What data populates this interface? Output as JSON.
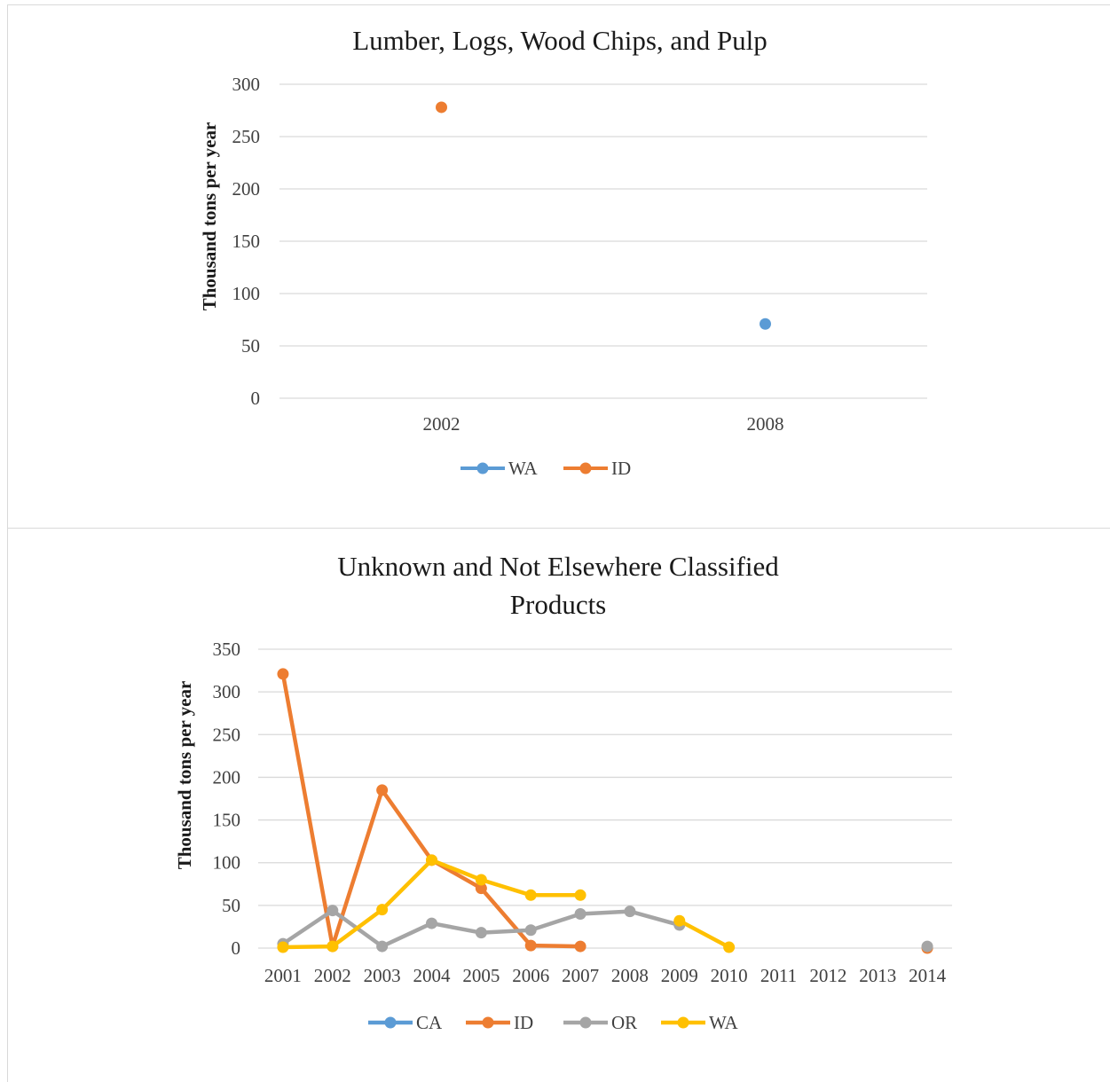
{
  "chart_data": [
    {
      "type": "line",
      "title": "Lumber, Logs, Wood Chips, and Pulp",
      "subtitle": "",
      "xlabel": "",
      "ylabel": "Thousand tons per year",
      "categories": [
        "2002",
        "2008"
      ],
      "ylim": [
        0,
        300
      ],
      "yticks": [
        "0",
        "50",
        "100",
        "150",
        "200",
        "250",
        "300"
      ],
      "grid": true,
      "legend": "bottom",
      "series": [
        {
          "name": "WA",
          "color": "#5b9bd5",
          "values": [
            null,
            71
          ]
        },
        {
          "name": "ID",
          "color": "#ed7d31",
          "values": [
            278,
            null
          ]
        }
      ]
    },
    {
      "type": "line",
      "title": "Unknown and Not Elsewhere Classified Products",
      "title_lines": [
        "Unknown and Not Elsewhere Classified",
        "Products"
      ],
      "subtitle": "",
      "xlabel": "",
      "ylabel": "Thousand tons per year",
      "categories": [
        "2001",
        "2002",
        "2003",
        "2004",
        "2005",
        "2006",
        "2007",
        "2008",
        "2009",
        "2010",
        "2011",
        "2012",
        "2013",
        "2014"
      ],
      "ylim": [
        0,
        350
      ],
      "yticks": [
        "0",
        "50",
        "100",
        "150",
        "200",
        "250",
        "300",
        "350"
      ],
      "grid": true,
      "legend": "bottom",
      "series": [
        {
          "name": "CA",
          "color": "#5b9bd5",
          "values": [
            null,
            null,
            null,
            null,
            null,
            null,
            null,
            null,
            null,
            null,
            null,
            null,
            null,
            null
          ]
        },
        {
          "name": "ID",
          "color": "#ed7d31",
          "values": [
            321,
            2,
            185,
            103,
            70,
            3,
            2,
            null,
            null,
            null,
            null,
            null,
            null,
            0
          ]
        },
        {
          "name": "OR",
          "color": "#a5a5a5",
          "values": [
            5,
            44,
            2,
            29,
            18,
            21,
            40,
            43,
            27,
            null,
            null,
            null,
            null,
            2
          ]
        },
        {
          "name": "WA",
          "color": "#ffc000",
          "values": [
            1,
            2,
            45,
            103,
            80,
            62,
            62,
            null,
            32,
            1,
            null,
            null,
            null,
            null
          ]
        }
      ]
    }
  ]
}
